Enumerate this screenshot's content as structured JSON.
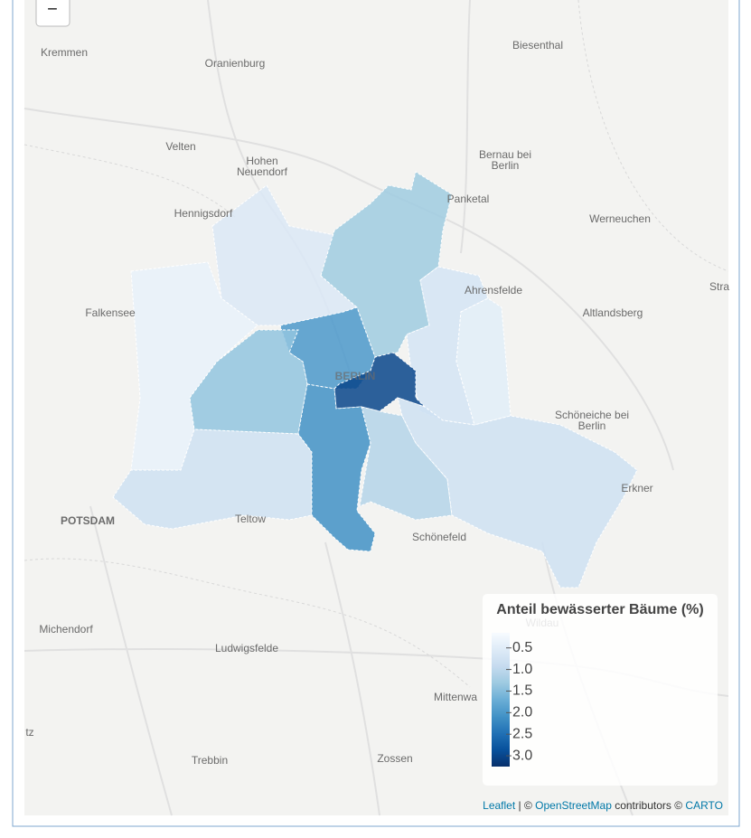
{
  "zoom_out": "−",
  "places": [
    "Kremmen",
    "Oranienburg",
    "Biesenthal",
    "Velten",
    [
      "Hohen",
      "Neuendorf"
    ],
    [
      "Bernau bei",
      "Berlin"
    ],
    "Panketal",
    "Hennigsdorf",
    "Werneuchen",
    "Ahrensfelde",
    "Falkensee",
    "Altlandsberg",
    "Stra",
    "BERLIN",
    [
      "Schöneiche bei",
      "Berlin"
    ],
    "Erkner",
    "POTSDAM",
    "Teltow",
    "Schönefeld",
    "Michendorf",
    "Ludwigsfelde",
    "Mittenwa",
    "Trebbin",
    "Zossen",
    "tz",
    "Wildau"
  ],
  "districts": [
    0.4,
    0.6,
    1.3,
    0.7,
    0.5,
    2.0,
    3.0,
    1.4,
    0.8,
    2.1,
    1.1,
    0.8
  ],
  "legend": {
    "title": "Anteil bewässerter Bäume (%)",
    "range": [
      0.15,
      3.25
    ],
    "palette": [
      "#f7fbff",
      "#deebf7",
      "#c6dbef",
      "#9ecae1",
      "#6baed6",
      "#4292c6",
      "#2171b5",
      "#08519c",
      "#08306b"
    ],
    "ticks": [
      0.5,
      {
        "value": 1,
        "label": "1.0"
      },
      1.5,
      {
        "value": 2,
        "label": "2.0"
      },
      2.5,
      {
        "value": 3,
        "label": "3.0"
      }
    ]
  },
  "attribution": {
    "leaflet": "Leaflet",
    "sep": " | © ",
    "osm": "OpenStreetMap",
    "mid": " contributors © ",
    "carto": "CARTO"
  }
}
